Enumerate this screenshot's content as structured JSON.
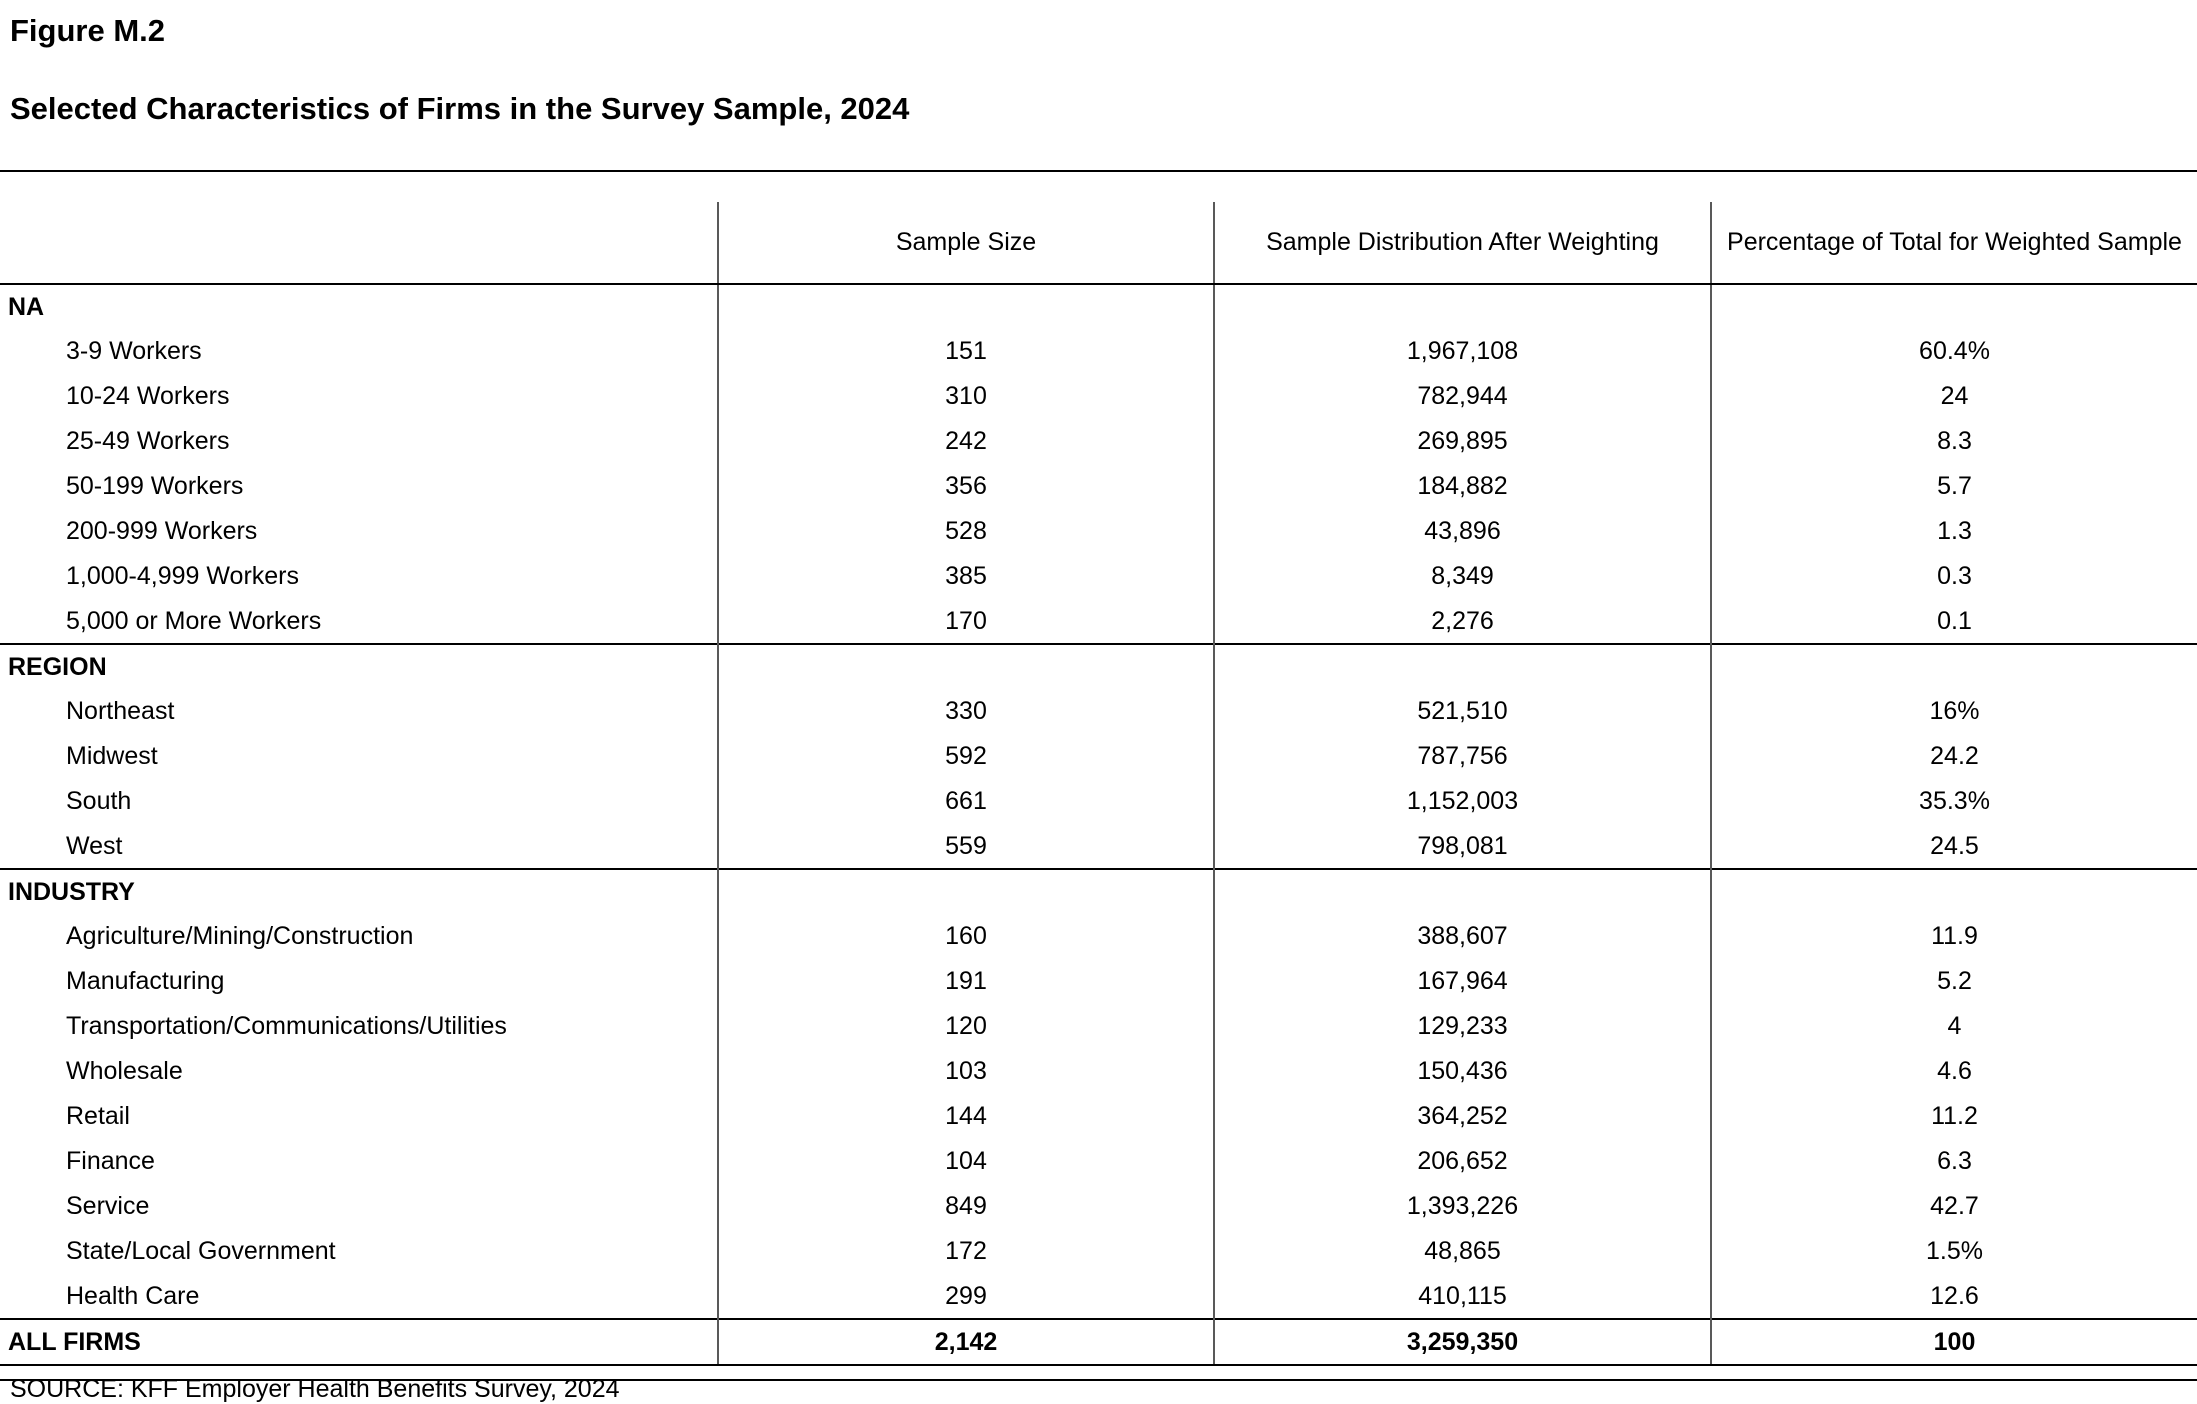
{
  "figure": {
    "label": "Figure M.2",
    "title": "Selected Characteristics of Firms in the Survey Sample, 2024",
    "source": "SOURCE: KFF Employer Health Benefits Survey, 2024"
  },
  "table": {
    "columns": {
      "label": "",
      "sample_size": "Sample Size",
      "weighted_distribution": "Sample Distribution After Weighting",
      "weighted_percentage": "Percentage of Total for Weighted Sample"
    },
    "sections": [
      {
        "header": "NA",
        "rows": [
          {
            "label": "3-9 Workers",
            "sample_size": "151",
            "weighted_distribution": "1,967,108",
            "weighted_percentage": "60.4%"
          },
          {
            "label": "10-24 Workers",
            "sample_size": "310",
            "weighted_distribution": "782,944",
            "weighted_percentage": "24"
          },
          {
            "label": "25-49 Workers",
            "sample_size": "242",
            "weighted_distribution": "269,895",
            "weighted_percentage": "8.3"
          },
          {
            "label": "50-199 Workers",
            "sample_size": "356",
            "weighted_distribution": "184,882",
            "weighted_percentage": "5.7"
          },
          {
            "label": "200-999 Workers",
            "sample_size": "528",
            "weighted_distribution": "43,896",
            "weighted_percentage": "1.3"
          },
          {
            "label": "1,000-4,999 Workers",
            "sample_size": "385",
            "weighted_distribution": "8,349",
            "weighted_percentage": "0.3"
          },
          {
            "label": "5,000 or More Workers",
            "sample_size": "170",
            "weighted_distribution": "2,276",
            "weighted_percentage": "0.1"
          }
        ]
      },
      {
        "header": "REGION",
        "rows": [
          {
            "label": "Northeast",
            "sample_size": "330",
            "weighted_distribution": "521,510",
            "weighted_percentage": "16%"
          },
          {
            "label": "Midwest",
            "sample_size": "592",
            "weighted_distribution": "787,756",
            "weighted_percentage": "24.2"
          },
          {
            "label": "South",
            "sample_size": "661",
            "weighted_distribution": "1,152,003",
            "weighted_percentage": "35.3%"
          },
          {
            "label": "West",
            "sample_size": "559",
            "weighted_distribution": "798,081",
            "weighted_percentage": "24.5"
          }
        ]
      },
      {
        "header": "INDUSTRY",
        "rows": [
          {
            "label": "Agriculture/Mining/Construction",
            "sample_size": "160",
            "weighted_distribution": "388,607",
            "weighted_percentage": "11.9"
          },
          {
            "label": "Manufacturing",
            "sample_size": "191",
            "weighted_distribution": "167,964",
            "weighted_percentage": "5.2"
          },
          {
            "label": "Transportation/Communications/Utilities",
            "sample_size": "120",
            "weighted_distribution": "129,233",
            "weighted_percentage": "4"
          },
          {
            "label": "Wholesale",
            "sample_size": "103",
            "weighted_distribution": "150,436",
            "weighted_percentage": "4.6"
          },
          {
            "label": "Retail",
            "sample_size": "144",
            "weighted_distribution": "364,252",
            "weighted_percentage": "11.2"
          },
          {
            "label": "Finance",
            "sample_size": "104",
            "weighted_distribution": "206,652",
            "weighted_percentage": "6.3"
          },
          {
            "label": "Service",
            "sample_size": "849",
            "weighted_distribution": "1,393,226",
            "weighted_percentage": "42.7"
          },
          {
            "label": "State/Local Government",
            "sample_size": "172",
            "weighted_distribution": "48,865",
            "weighted_percentage": "1.5%"
          },
          {
            "label": "Health Care",
            "sample_size": "299",
            "weighted_distribution": "410,115",
            "weighted_percentage": "12.6"
          }
        ]
      }
    ],
    "total_row": {
      "label": "ALL FIRMS",
      "sample_size": "2,142",
      "weighted_distribution": "3,259,350",
      "weighted_percentage": "100"
    }
  }
}
